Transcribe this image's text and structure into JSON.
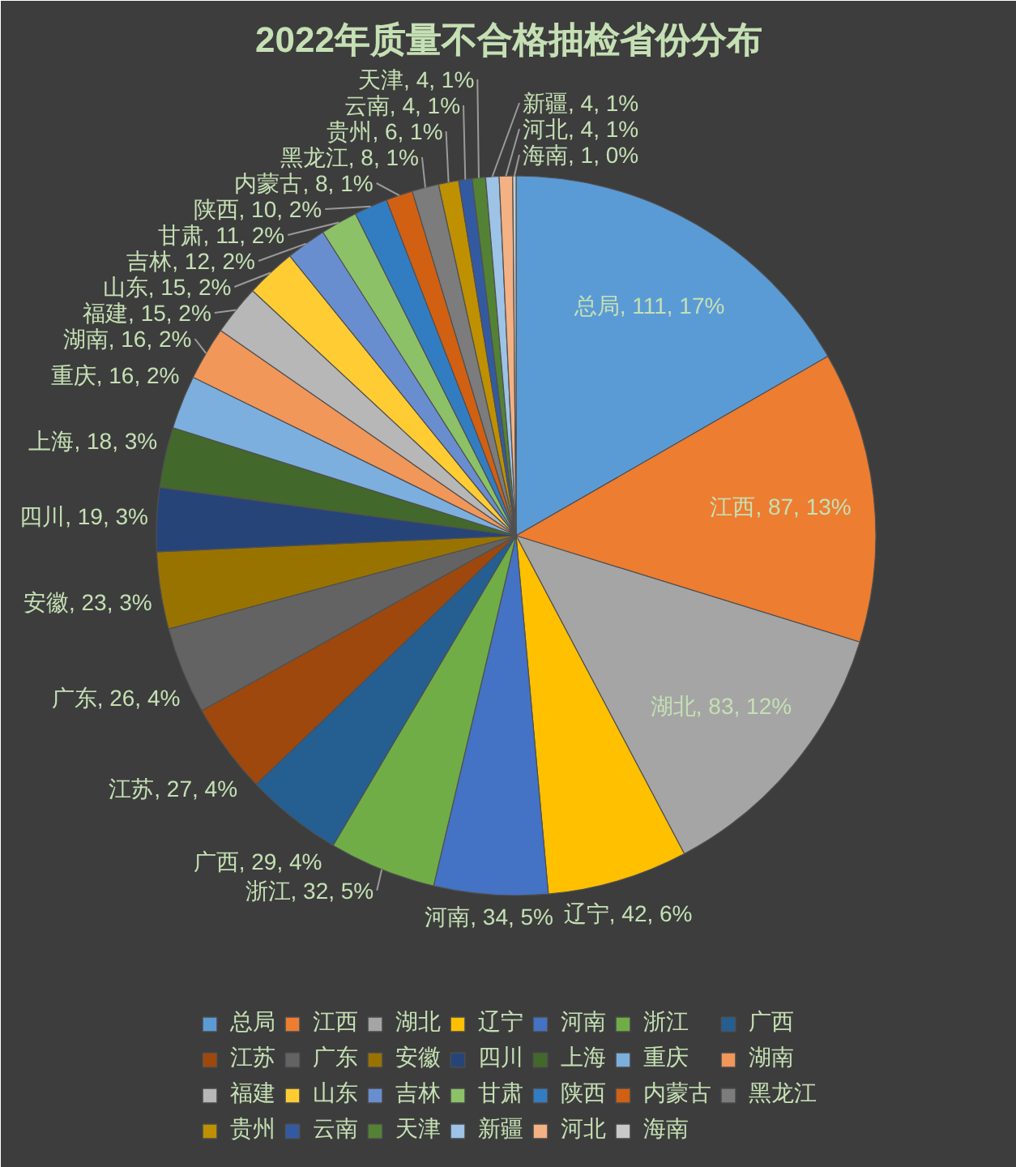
{
  "chart_data": {
    "type": "pie",
    "title": "2022年质量不合格抽检省份分布",
    "categories": [
      "总局",
      "江西",
      "湖北",
      "辽宁",
      "河南",
      "浙江",
      "广西",
      "江苏",
      "广东",
      "安徽",
      "四川",
      "上海",
      "重庆",
      "湖南",
      "福建",
      "山东",
      "吉林",
      "甘肃",
      "陕西",
      "内蒙古",
      "黑龙江",
      "贵州",
      "云南",
      "天津",
      "新疆",
      "河北",
      "海南"
    ],
    "values": [
      111,
      87,
      83,
      42,
      34,
      32,
      29,
      27,
      26,
      23,
      19,
      18,
      16,
      16,
      15,
      15,
      12,
      11,
      10,
      8,
      8,
      6,
      4,
      4,
      4,
      4,
      1
    ],
    "colors": [
      "#5b9bd5",
      "#ed7d31",
      "#a5a5a5",
      "#ffc000",
      "#4472c4",
      "#70ad47",
      "#255e91",
      "#9e480e",
      "#636363",
      "#997300",
      "#264478",
      "#43682b",
      "#7cafdd",
      "#f1975a",
      "#b7b7b7",
      "#ffcd33",
      "#698ed0",
      "#8cc168",
      "#327dc2",
      "#d26012",
      "#7c7c7c",
      "#bf9000",
      "#335aa1",
      "#548235",
      "#9dc3e6",
      "#f4b183",
      "#c9c9c9"
    ],
    "value_labels": [
      "总局, 111, 17%",
      "江西, 87, 13%",
      "湖北, 83, 12%",
      "辽宁, 42, 6%",
      "河南, 34, 5%",
      "浙江, 32, 5%",
      "广西, 29, 4%",
      "江苏, 27, 4%",
      "广东, 26, 4%",
      "安徽, 23, 3%",
      "四川, 19, 3%",
      "上海, 18, 3%",
      "重庆, 16, 2%",
      "湖南, 16, 2%",
      "福建, 15, 2%",
      "山东, 15, 2%",
      "吉林, 12, 2%",
      "甘肃, 11, 2%",
      "陕西, 10, 2%",
      "内蒙古, 8, 1%",
      "黑龙江, 8, 1%",
      "贵州, 6, 1%",
      "云南, 4, 1%",
      "天津, 4, 1%",
      "新疆, 4, 1%",
      "河北, 4, 1%",
      "海南, 1, 0%"
    ],
    "legend": "bottom"
  }
}
